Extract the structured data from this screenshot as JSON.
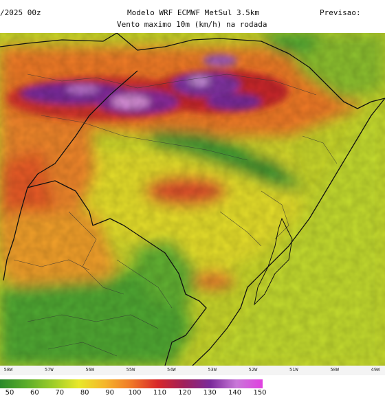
{
  "header": {
    "run_date": "/2025 00z",
    "model_title": "Modelo WRF ECMWF MetSul 3.5km",
    "subtitle": "Vento maximo 10m (km/h) na rodada",
    "forecast_label": "Previsao:"
  },
  "longitude_ticks": [
    "58W",
    "57W",
    "56W",
    "55W",
    "54W",
    "53W",
    "52W",
    "51W",
    "50W",
    "49W"
  ],
  "colorbar": {
    "unit": "km/h",
    "labels": [
      "50",
      "60",
      "70",
      "80",
      "90",
      "100",
      "110",
      "120",
      "130",
      "140",
      "150"
    ],
    "colors": [
      "#2a8a2a",
      "#5aad2a",
      "#9ccc2a",
      "#e8e82a",
      "#f5b52a",
      "#f07828",
      "#d8282a",
      "#a0205a",
      "#7a2a9a",
      "#c878d8",
      "#e040e0"
    ]
  },
  "colors": {
    "green_dark": "#2e8b2e",
    "green": "#66b832",
    "yellow_green": "#b8d62e",
    "yellow": "#e8e02a",
    "orange": "#f29a2a",
    "red": "#e0402a",
    "dark_red": "#b8202a",
    "purple": "#7a2a9a",
    "pink": "#e090e0"
  }
}
